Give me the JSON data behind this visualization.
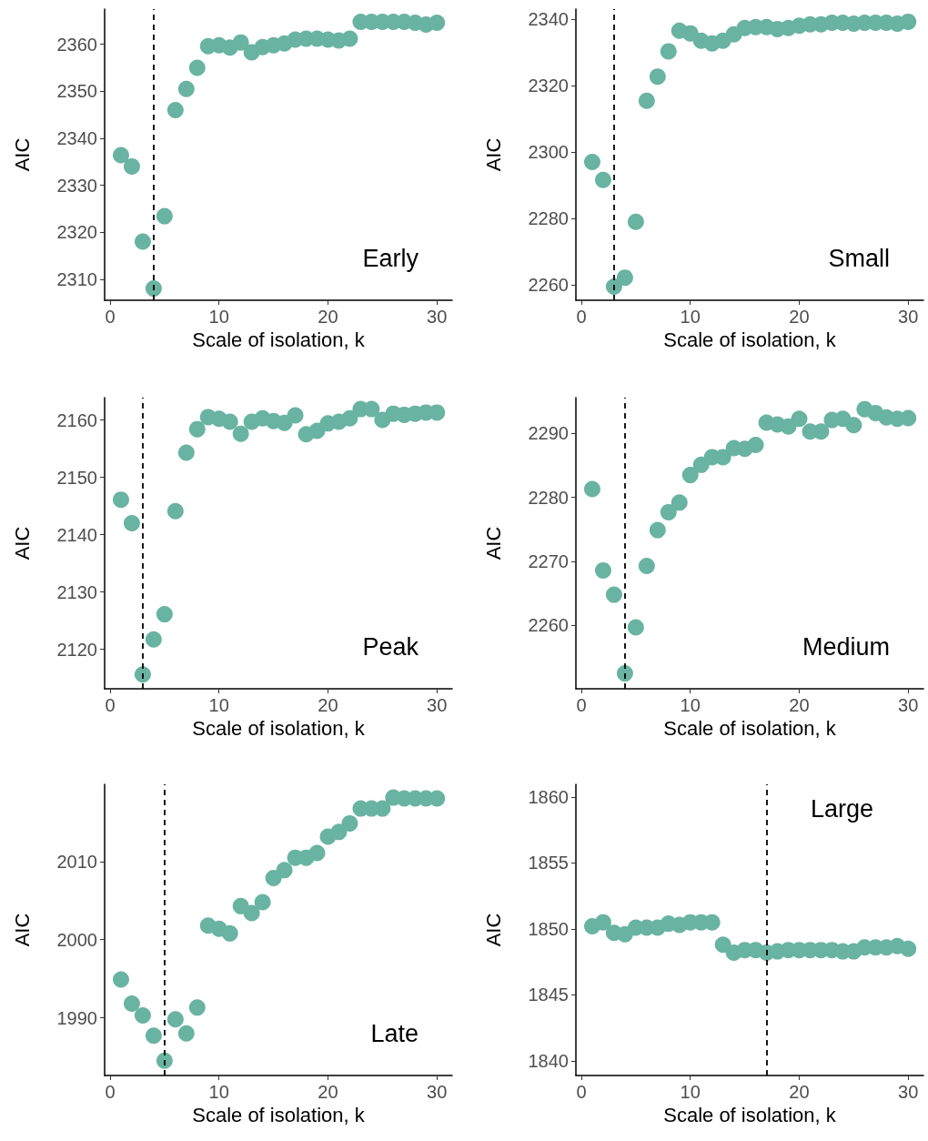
{
  "chart_data": [
    {
      "type": "scatter",
      "xlabel": "Scale of isolation, k",
      "ylabel": "AIC",
      "annotations": [
        "Early"
      ],
      "x": [
        1,
        2,
        3,
        4,
        5,
        6,
        7,
        8,
        9,
        10,
        11,
        12,
        13,
        14,
        15,
        16,
        17,
        18,
        19,
        20,
        21,
        22,
        23,
        24,
        25,
        26,
        27,
        28,
        29,
        30
      ],
      "series": [
        {
          "color": "#69b3a2",
          "values": [
            2336.4,
            2334,
            2318,
            2308,
            2323.4,
            2346,
            2350.5,
            2355,
            2359.6,
            2359.8,
            2359.3,
            2360.4,
            2358.3,
            2359.4,
            2359.8,
            2360.2,
            2361,
            2361.2,
            2361.2,
            2361,
            2360.8,
            2361.2,
            2364.8,
            2364.8,
            2364.8,
            2364.8,
            2364.8,
            2364.6,
            2364.2,
            2364.6
          ]
        }
      ],
      "xlim": [
        -0.5,
        31.4
      ],
      "xticks": [
        0,
        10,
        20,
        30
      ],
      "ylim": [
        2305.5,
        2367.5
      ],
      "yticks": [
        2310,
        2320,
        2330,
        2340,
        2350,
        2360
      ],
      "ref_lines": [
        {
          "axis": "x",
          "value": 4,
          "color": "#000000",
          "line_style": "dashed"
        }
      ],
      "marker": "circle",
      "grid": false
    },
    {
      "type": "scatter",
      "xlabel": "Scale of isolation, k",
      "ylabel": "AIC",
      "annotations": [
        "Small"
      ],
      "x": [
        1,
        2,
        3,
        4,
        5,
        6,
        7,
        8,
        9,
        10,
        11,
        12,
        13,
        14,
        15,
        16,
        17,
        18,
        19,
        20,
        21,
        22,
        23,
        24,
        25,
        26,
        27,
        28,
        29,
        30
      ],
      "series": [
        {
          "color": "#69b3a2",
          "values": [
            2297,
            2291.6,
            2259.5,
            2262.2,
            2279,
            2315.4,
            2322.7,
            2330.3,
            2336.5,
            2335.7,
            2333.5,
            2332.7,
            2333.5,
            2335.4,
            2337.3,
            2337.6,
            2337.6,
            2337,
            2337.3,
            2338,
            2338.4,
            2338.4,
            2338.9,
            2338.9,
            2338.6,
            2338.9,
            2338.9,
            2338.9,
            2338.6,
            2339.2
          ]
        }
      ],
      "xlim": [
        -0.5,
        31.4
      ],
      "xticks": [
        0,
        10,
        20,
        30
      ],
      "ylim": [
        2255.4,
        2343
      ],
      "yticks": [
        2260,
        2280,
        2300,
        2320,
        2340
      ],
      "ref_lines": [
        {
          "axis": "x",
          "value": 3,
          "color": "#000000",
          "line_style": "dashed"
        }
      ],
      "marker": "circle",
      "grid": false
    },
    {
      "type": "scatter",
      "xlabel": "Scale of isolation, k",
      "ylabel": "AIC",
      "annotations": [
        "Peak"
      ],
      "x": [
        1,
        2,
        3,
        4,
        5,
        6,
        7,
        8,
        9,
        10,
        11,
        12,
        13,
        14,
        15,
        16,
        17,
        18,
        19,
        20,
        21,
        22,
        23,
        24,
        25,
        26,
        27,
        28,
        29,
        30
      ],
      "series": [
        {
          "color": "#69b3a2",
          "values": [
            2146.1,
            2142,
            2115.6,
            2121.7,
            2126.1,
            2144.1,
            2154.3,
            2158.4,
            2160.5,
            2160.2,
            2159.7,
            2157.6,
            2159.7,
            2160.3,
            2159.8,
            2159.5,
            2160.8,
            2157.5,
            2158.1,
            2159.4,
            2159.7,
            2160.3,
            2161.9,
            2161.9,
            2160,
            2161.1,
            2160.9,
            2161.1,
            2161.3,
            2161.3
          ]
        }
      ],
      "xlim": [
        -0.5,
        31.4
      ],
      "xticks": [
        0,
        10,
        20,
        30
      ],
      "ylim": [
        2113.1,
        2163.9
      ],
      "yticks": [
        2120,
        2130,
        2140,
        2150,
        2160
      ],
      "ref_lines": [
        {
          "axis": "x",
          "value": 3,
          "color": "#000000",
          "line_style": "dashed"
        }
      ],
      "marker": "circle",
      "grid": false
    },
    {
      "type": "scatter",
      "xlabel": "Scale of isolation, k",
      "ylabel": "AIC",
      "annotations": [
        "Medium"
      ],
      "x": [
        1,
        2,
        3,
        4,
        5,
        6,
        7,
        8,
        9,
        10,
        11,
        12,
        13,
        14,
        15,
        16,
        17,
        18,
        19,
        20,
        21,
        22,
        23,
        24,
        25,
        26,
        27,
        28,
        29,
        30
      ],
      "series": [
        {
          "color": "#69b3a2",
          "values": [
            2281.3,
            2268.6,
            2264.8,
            2252.5,
            2259.7,
            2269.3,
            2274.9,
            2277.7,
            2279.2,
            2283.5,
            2285.1,
            2286.3,
            2286.3,
            2287.7,
            2287.6,
            2288.2,
            2291.7,
            2291.4,
            2291.1,
            2292.3,
            2290.3,
            2290.3,
            2292.1,
            2292.3,
            2291.3,
            2293.8,
            2293.2,
            2292.5,
            2292.3,
            2292.4
          ]
        }
      ],
      "xlim": [
        -0.5,
        31.4
      ],
      "xticks": [
        0,
        10,
        20,
        30
      ],
      "ylim": [
        2250.1,
        2295.6
      ],
      "yticks": [
        2260,
        2270,
        2280,
        2290
      ],
      "ref_lines": [
        {
          "axis": "x",
          "value": 4,
          "color": "#000000",
          "line_style": "dashed"
        }
      ],
      "marker": "circle",
      "grid": false
    },
    {
      "type": "scatter",
      "xlabel": "Scale of isolation, k",
      "ylabel": "AIC",
      "annotations": [
        "Late"
      ],
      "x": [
        1,
        2,
        3,
        4,
        5,
        6,
        7,
        8,
        9,
        10,
        11,
        12,
        13,
        14,
        15,
        16,
        17,
        18,
        19,
        20,
        21,
        22,
        23,
        24,
        25,
        26,
        27,
        28,
        29,
        30
      ],
      "series": [
        {
          "color": "#69b3a2",
          "values": [
            1994.9,
            1991.8,
            1990.3,
            1987.7,
            1984.5,
            1989.8,
            1988,
            1991.3,
            2001.8,
            2001.4,
            2000.8,
            2004.3,
            2003.4,
            2004.8,
            2007.9,
            2008.9,
            2010.5,
            2010.5,
            2011.1,
            2013.2,
            2013.8,
            2014.9,
            2016.8,
            2016.8,
            2016.8,
            2018.2,
            2018.1,
            2018.1,
            2018.1,
            2018.1
          ]
        }
      ],
      "xlim": [
        -0.5,
        31.4
      ],
      "xticks": [
        0,
        10,
        20,
        30
      ],
      "ylim": [
        1982.6,
        2019.9
      ],
      "yticks": [
        1990,
        2000,
        2010
      ],
      "ref_lines": [
        {
          "axis": "x",
          "value": 5,
          "color": "#000000",
          "line_style": "dashed"
        }
      ],
      "marker": "circle",
      "grid": false
    },
    {
      "type": "scatter",
      "xlabel": "Scale of isolation, k",
      "ylabel": "AIC",
      "annotations": [
        "Large"
      ],
      "x": [
        1,
        2,
        3,
        4,
        5,
        6,
        7,
        8,
        9,
        10,
        11,
        12,
        13,
        14,
        15,
        16,
        17,
        18,
        19,
        20,
        21,
        22,
        23,
        24,
        25,
        26,
        27,
        28,
        29,
        30
      ],
      "series": [
        {
          "color": "#69b3a2",
          "values": [
            1850.2,
            1850.5,
            1849.7,
            1849.6,
            1850.1,
            1850.1,
            1850.1,
            1850.4,
            1850.3,
            1850.5,
            1850.5,
            1850.5,
            1848.8,
            1848.2,
            1848.4,
            1848.4,
            1848.2,
            1848.3,
            1848.4,
            1848.4,
            1848.4,
            1848.4,
            1848.4,
            1848.3,
            1848.3,
            1848.6,
            1848.6,
            1848.6,
            1848.7,
            1848.5
          ]
        }
      ],
      "xlim": [
        -0.5,
        31.4
      ],
      "xticks": [
        0,
        10,
        20,
        30
      ],
      "ylim": [
        1838.9,
        1860.95
      ],
      "yticks": [
        1840,
        1845,
        1850,
        1855,
        1860
      ],
      "ref_lines": [
        {
          "axis": "x",
          "value": 17,
          "color": "#000000",
          "line_style": "dashed"
        }
      ],
      "marker": "circle",
      "grid": false
    }
  ]
}
